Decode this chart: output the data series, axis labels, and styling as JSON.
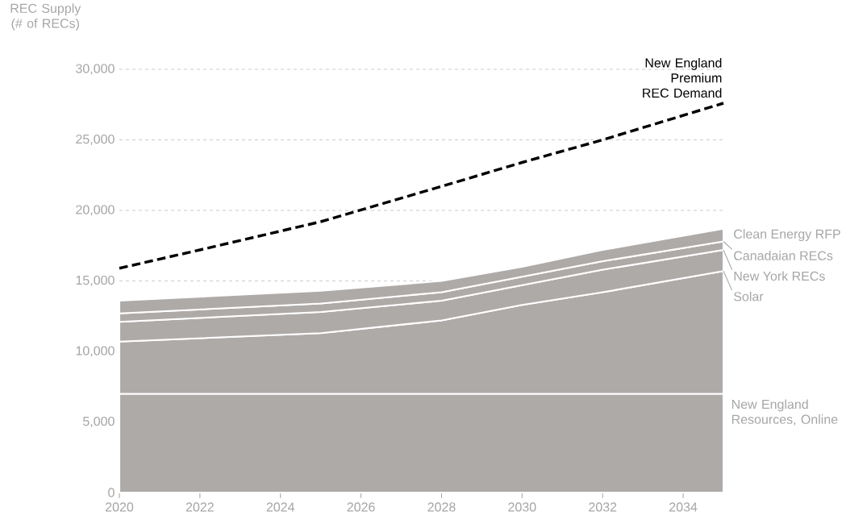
{
  "chart_data": {
    "type": "area",
    "stacked": true,
    "ylabel": "REC Supply (# of RECs)",
    "x": [
      2020,
      2025,
      2028,
      2030,
      2032,
      2035
    ],
    "xlim": [
      2020,
      2035
    ],
    "xticks": [
      2020,
      2022,
      2024,
      2026,
      2028,
      2030,
      2032,
      2034
    ],
    "ylim": [
      0,
      30000
    ],
    "yticks": [
      {
        "value": 0,
        "label": "0"
      },
      {
        "value": 5000,
        "label": "5,000"
      },
      {
        "value": 10000,
        "label": "10,000"
      },
      {
        "value": 15000,
        "label": "15,000"
      },
      {
        "value": 20000,
        "label": "20,000"
      },
      {
        "value": 25000,
        "label": "25,000"
      },
      {
        "value": 30000,
        "label": "30,000"
      }
    ],
    "grid": "y",
    "legend": "right",
    "series": [
      {
        "name": "New England Resources, Online",
        "color": "#aeaaa8",
        "values": [
          7000,
          7000,
          7000,
          7000,
          7000,
          7000
        ]
      },
      {
        "name": "Solar",
        "color": "#aeaaa8",
        "values": [
          3700,
          4300,
          5200,
          6300,
          7200,
          8700
        ]
      },
      {
        "name": "New York RECs",
        "color": "#aeaaa8",
        "values": [
          1400,
          1500,
          1400,
          1400,
          1600,
          1500
        ]
      },
      {
        "name": "Canadaian RECs",
        "color": "#aeaaa8",
        "values": [
          600,
          600,
          600,
          600,
          600,
          600
        ]
      },
      {
        "name": "Clean Energy RFP",
        "color": "#aeaaa8",
        "values": [
          900,
          900,
          800,
          700,
          800,
          900
        ]
      },
      {
        "name": "New England Premium REC Demand",
        "type": "line",
        "line_style": "dashed",
        "color": "#000000",
        "x": [
          2020,
          2022,
          2025,
          2028,
          2030,
          2032,
          2035
        ],
        "values": [
          15900,
          17200,
          19200,
          21700,
          23400,
          25000,
          27600
        ]
      }
    ]
  }
}
